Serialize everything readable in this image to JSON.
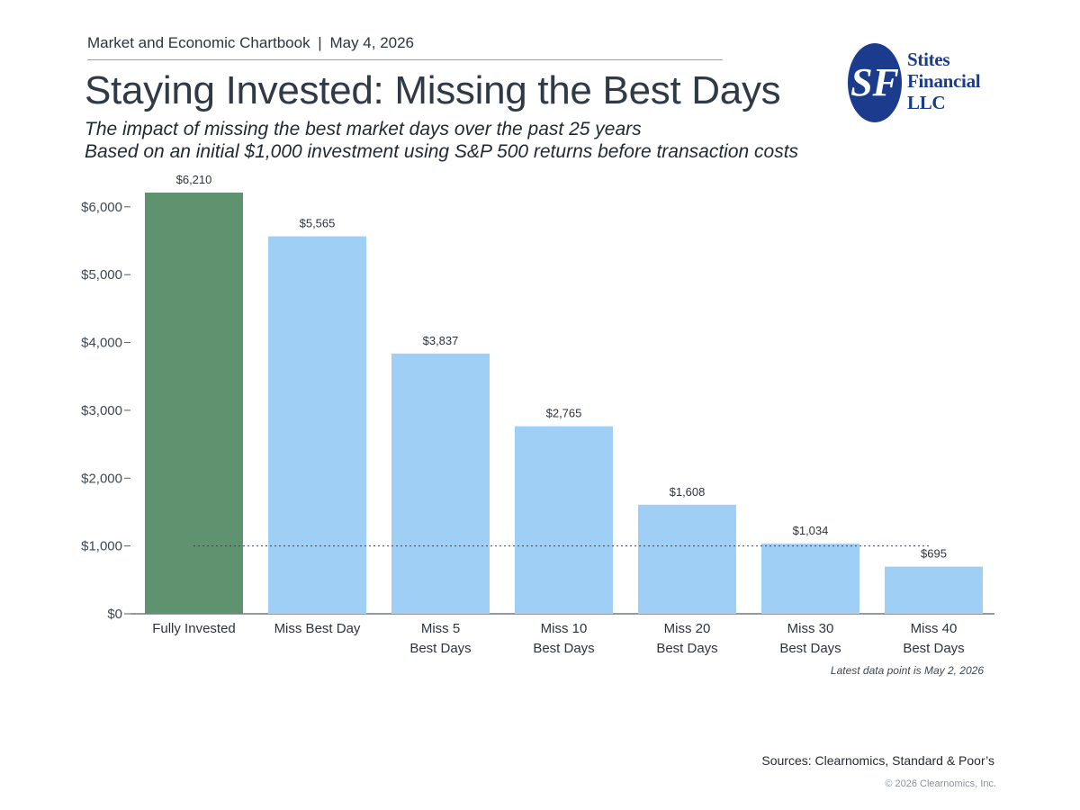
{
  "header": {
    "publication": "Market and Economic Chartbook",
    "separator": "|",
    "date": "May 4, 2026"
  },
  "title": "Staying Invested: Missing the Best Days",
  "subtitle_line1": "The impact of missing the best market days over the past 25 years",
  "subtitle_line2": "Based on an initial $1,000 investment using S&P 500 returns before transaction costs",
  "logo": {
    "monogram": "SF",
    "line1": "Stites",
    "line2": "Financial",
    "line3": "LLC",
    "color": "#1b3c8c"
  },
  "chart_data": {
    "type": "bar",
    "categories": [
      [
        "Fully Invested"
      ],
      [
        "Miss Best Day"
      ],
      [
        "Miss 5",
        "Best Days"
      ],
      [
        "Miss 10",
        "Best Days"
      ],
      [
        "Miss 20",
        "Best Days"
      ],
      [
        "Miss 30",
        "Best Days"
      ],
      [
        "Miss 40",
        "Best Days"
      ]
    ],
    "values": [
      6210,
      5565,
      3837,
      2765,
      1608,
      1034,
      695
    ],
    "value_labels": [
      "$6,210",
      "$5,565",
      "$3,837",
      "$2,765",
      "$1,608",
      "$1,034",
      "$695"
    ],
    "colors": [
      "#5f9370",
      "#a0cff5",
      "#a0cff5",
      "#a0cff5",
      "#a0cff5",
      "#a0cff5",
      "#a0cff5"
    ],
    "ylim": [
      0,
      6210
    ],
    "yticks": [
      0,
      1000,
      2000,
      3000,
      4000,
      5000,
      6000
    ],
    "ytick_labels": [
      "$0",
      "$1,000",
      "$2,000",
      "$3,000",
      "$4,000",
      "$5,000",
      "$6,000"
    ],
    "reference_line": {
      "value": 1000,
      "style": "dotted"
    },
    "grid": false,
    "legend": "none"
  },
  "note": "Latest data point is May 2, 2026",
  "sources": "Sources: Clearnomics, Standard & Poor’s",
  "copyright": "© 2026 Clearnomics, Inc."
}
